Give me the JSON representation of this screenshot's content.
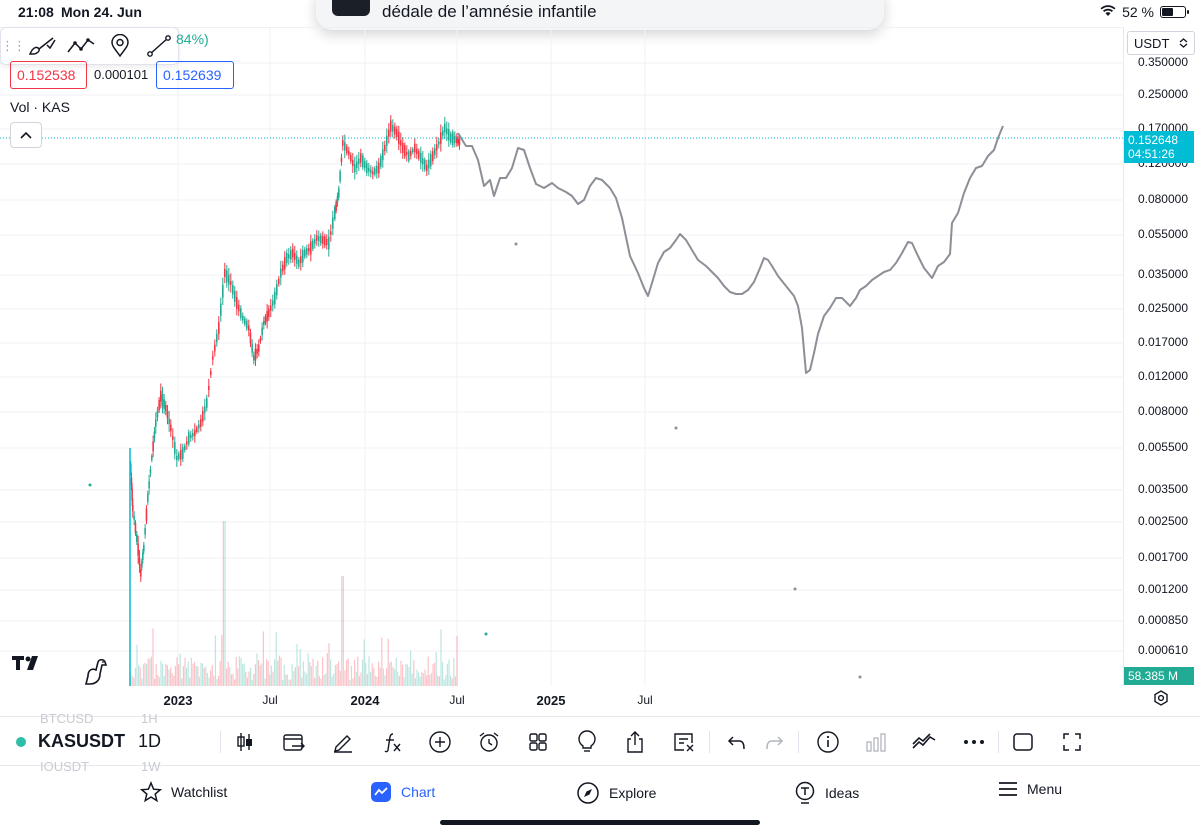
{
  "status_bar": {
    "time": "21:08",
    "date": "Mon 24. Jun",
    "battery_percent": "52 %",
    "battery_level": 0.52
  },
  "notification": {
    "text": "dédale de l’amnésie infantile"
  },
  "drawing_toolbar": {
    "tools": [
      "brush-icon",
      "trend-icon",
      "pin-icon",
      "line-icon"
    ],
    "percent_peek": "84%)"
  },
  "quote": {
    "bid": "0.152538",
    "spread": "0.000101",
    "ask": "0.152639"
  },
  "legend": {
    "volume": "Vol · KAS"
  },
  "currency": "USDT",
  "price_axis": {
    "labels": [
      "0.350000",
      "0.250000",
      "0.170000",
      "0.120000",
      "0.080000",
      "0.055000",
      "0.035000",
      "0.025000",
      "0.017000",
      "0.012000",
      "0.008000",
      "0.005500",
      "0.003500",
      "0.002500",
      "0.001700",
      "0.001200",
      "0.000850",
      "0.000610"
    ],
    "current_price": "0.152648",
    "countdown": "04:51:26",
    "volume_tag": "58.385 M"
  },
  "time_axis": {
    "labels": [
      "2023",
      "Jul",
      "2024",
      "Jul",
      "2025",
      "Jul"
    ]
  },
  "symbol": {
    "name": "KASUSDT",
    "interval": "1D",
    "ghost_above": "BTCUSD",
    "ghost_above_interval": "1H",
    "ghost_below": "IOUSDT",
    "ghost_below_interval": "1W"
  },
  "tools": [
    "candles-icon",
    "compare-icon",
    "draw-icon",
    "indicators-icon",
    "add-icon",
    "alert-icon",
    "layouts-icon",
    "ideas-bulb-icon",
    "share-icon",
    "objects-icon",
    "undo-icon",
    "redo-icon",
    "info-icon",
    "volume-bars-icon",
    "replay-icon",
    "more-icon",
    "fullscreen-window-icon",
    "expand-icon"
  ],
  "tabs": [
    {
      "label": "Watchlist",
      "icon": "star-icon"
    },
    {
      "label": "Chart",
      "icon": "chart-icon"
    },
    {
      "label": "Explore",
      "icon": "compass-icon"
    },
    {
      "label": "Ideas",
      "icon": "ideas-icon"
    },
    {
      "label": "Menu",
      "icon": "hamburger-icon"
    }
  ],
  "colors": {
    "up": "#22ab94",
    "down": "#f23645",
    "accent": "#2962ff",
    "price_tag": "#00bcd4",
    "drawing": "#8c8f96"
  }
}
